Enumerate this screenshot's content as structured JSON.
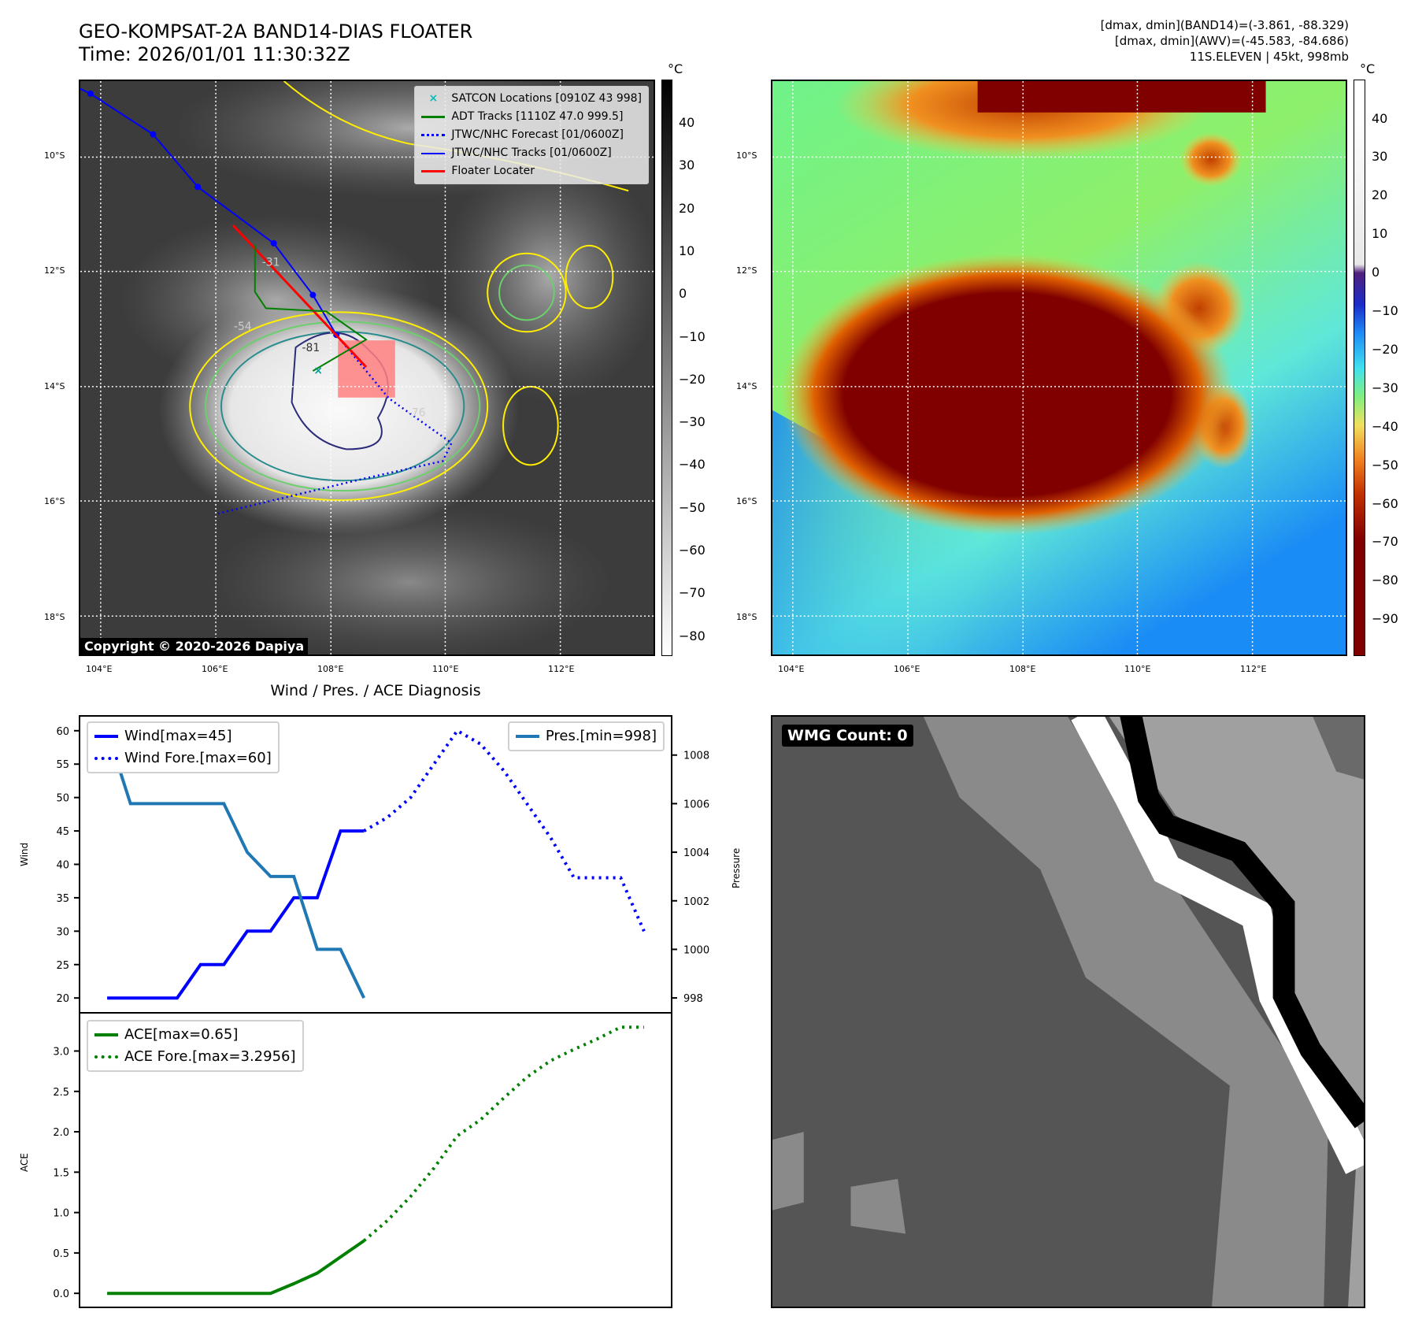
{
  "header": {
    "title": "GEO-KOMPSAT-2A BAND14-DIAS FLOATER",
    "time": "Time: 2026/01/01 11:30:32Z",
    "info_line1": "[dmax, dmin](BAND14)=(-3.861, -88.329)",
    "info_line2": "[dmax, dmin](AWV)=(-45.583, -84.686)",
    "info_line3": "11S.ELEVEN | 45kt, 998mb"
  },
  "map": {
    "lat_ticks": [
      "10°S",
      "12°S",
      "14°S",
      "16°S",
      "18°S"
    ],
    "lon_ticks": [
      "104°E",
      "106°E",
      "108°E",
      "110°E",
      "112°E"
    ],
    "copyright": "Copyright © 2020-2026 Dapiya",
    "contour_labels": [
      "-31",
      "-54",
      "-76",
      "-81"
    ],
    "legend": [
      {
        "label": "SATCON Locations [0910Z 43 998]",
        "color": "#00bfbf"
      },
      {
        "label": "ADT Tracks [1110Z 47.0 999.5]",
        "color": "#008000"
      },
      {
        "label": "JTWC/NHC Forecast [01/0600Z]",
        "color": "#0000ff"
      },
      {
        "label": "JTWC/NHC Tracks [01/0600Z]",
        "color": "#0000ff"
      },
      {
        "label": "Floater Locater",
        "color": "#ff0000"
      }
    ],
    "cbar_unit": "°C",
    "cbar_ticks": [
      "40",
      "30",
      "20",
      "10",
      "0",
      "−10",
      "−20",
      "−30",
      "−40",
      "−50",
      "−60",
      "−70",
      "−80"
    ],
    "awv_cbar_ticks": [
      "40",
      "30",
      "20",
      "10",
      "0",
      "−10",
      "−20",
      "−30",
      "−40",
      "−50",
      "−60",
      "−70",
      "−80",
      "−90"
    ]
  },
  "wmg": {
    "label": "WMG Count: 0"
  },
  "chart_data": [
    {
      "type": "line",
      "title": "Wind / Pres. / ACE Diagnosis",
      "ylabel": "Wind",
      "ylabel_right": "Pressure",
      "xlim": [
        -1.15,
        24.15
      ],
      "ylim": [
        17.9,
        62.1
      ],
      "ylim_right": [
        997.42,
        1009.58
      ],
      "yticks": [
        20,
        25,
        30,
        35,
        40,
        45,
        50,
        55,
        60
      ],
      "yticks_right": [
        998,
        1000,
        1002,
        1004,
        1006,
        1008
      ],
      "series": [
        {
          "name": "Wind[max=45]",
          "axis": "left",
          "style": "solid",
          "color": "#0000ff",
          "x": [
            0,
            1,
            2,
            3,
            4,
            5,
            6,
            7,
            8,
            9,
            10,
            11
          ],
          "values": [
            20,
            20,
            20,
            20,
            25,
            25,
            30,
            30,
            35,
            35,
            45,
            45
          ]
        },
        {
          "name": "Wind Fore.[max=60]",
          "axis": "left",
          "style": "dotted",
          "color": "#0000ff",
          "x": [
            11,
            12,
            13,
            14,
            15,
            16,
            17,
            18,
            19,
            20,
            21,
            22,
            23
          ],
          "values": [
            45,
            47,
            50,
            55,
            60,
            58,
            54,
            49,
            44,
            38,
            38,
            38,
            30
          ]
        },
        {
          "name": "Pres.[min=998]",
          "axis": "right",
          "style": "solid",
          "color": "#1f77b4",
          "x": [
            0,
            1,
            2,
            3,
            4,
            5,
            6,
            7,
            8,
            9,
            10,
            11
          ],
          "values": [
            1009,
            1006,
            1006,
            1006,
            1006,
            1006,
            1004,
            1003,
            1003,
            1000,
            1000,
            998
          ]
        }
      ]
    },
    {
      "type": "line",
      "ylabel": "ACE",
      "xlim": [
        -1.15,
        24.15
      ],
      "ylim": [
        -0.164,
        3.463
      ],
      "yticks": [
        0.0,
        0.5,
        1.0,
        1.5,
        2.0,
        2.5,
        3.0
      ],
      "series": [
        {
          "name": "ACE[max=0.65]",
          "style": "solid",
          "color": "#008000",
          "x": [
            0,
            1,
            2,
            3,
            4,
            5,
            6,
            7,
            8,
            9,
            10,
            11
          ],
          "values": [
            0,
            0,
            0,
            0,
            0,
            0,
            0,
            0,
            0.12,
            0.25,
            0.45,
            0.65
          ]
        },
        {
          "name": "ACE Fore.[max=3.2956]",
          "style": "dotted",
          "color": "#008000",
          "x": [
            11,
            12,
            13,
            14,
            15,
            16,
            17,
            18,
            19,
            20,
            21,
            22,
            23
          ],
          "values": [
            0.65,
            0.9,
            1.2,
            1.55,
            1.95,
            2.15,
            2.42,
            2.68,
            2.88,
            3.02,
            3.15,
            3.2956,
            3.2956
          ]
        }
      ]
    }
  ]
}
